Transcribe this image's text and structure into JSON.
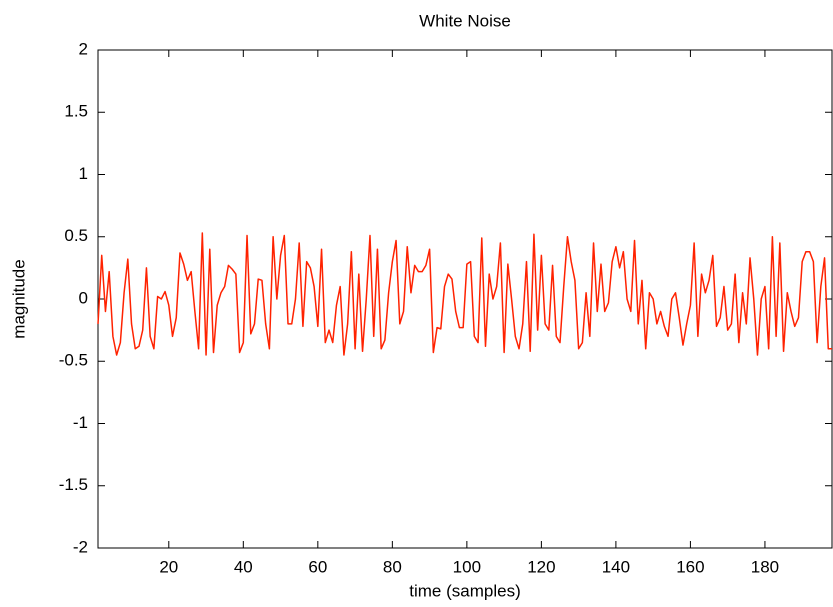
{
  "chart_data": {
    "type": "line",
    "title": "White Noise",
    "x_label": "time (samples)",
    "y_label": "magnitude",
    "x": [
      1,
      2,
      3,
      4,
      5,
      6,
      7,
      8,
      9,
      10,
      11,
      12,
      13,
      14,
      15,
      16,
      17,
      18,
      19,
      20,
      21,
      22,
      23,
      24,
      25,
      26,
      27,
      28,
      29,
      30,
      31,
      32,
      33,
      34,
      35,
      36,
      37,
      38,
      39,
      40,
      41,
      42,
      43,
      44,
      45,
      46,
      47,
      48,
      49,
      50,
      51,
      52,
      53,
      54,
      55,
      56,
      57,
      58,
      59,
      60,
      61,
      62,
      63,
      64,
      65,
      66,
      67,
      68,
      69,
      70,
      71,
      72,
      73,
      74,
      75,
      76,
      77,
      78,
      79,
      80,
      81,
      82,
      83,
      84,
      85,
      86,
      87,
      88,
      89,
      90,
      91,
      92,
      93,
      94,
      95,
      96,
      97,
      98,
      99,
      100,
      101,
      102,
      103,
      104,
      105,
      106,
      107,
      108,
      109,
      110,
      111,
      112,
      113,
      114,
      115,
      116,
      117,
      118,
      119,
      120,
      121,
      122,
      123,
      124,
      125,
      126,
      127,
      128,
      129,
      130,
      131,
      132,
      133,
      134,
      135,
      136,
      137,
      138,
      139,
      140,
      141,
      142,
      143,
      144,
      145,
      146,
      147,
      148,
      149,
      150,
      151,
      152,
      153,
      154,
      155,
      156,
      157,
      158,
      159,
      160,
      161,
      162,
      163,
      164,
      165,
      166,
      167,
      168,
      169,
      170,
      171,
      172,
      173,
      174,
      175,
      176,
      177,
      178,
      179,
      180,
      181,
      182,
      183,
      184,
      185,
      186,
      187,
      188,
      189,
      190,
      191,
      192,
      193,
      194,
      195,
      196,
      197,
      198
    ],
    "series": [
      {
        "name": "white noise",
        "color": "#ff2200",
        "values": [
          -0.2,
          0.35,
          -0.1,
          0.22,
          -0.3,
          -0.45,
          -0.35,
          0.05,
          0.32,
          -0.2,
          -0.4,
          -0.38,
          -0.25,
          0.25,
          -0.3,
          -0.4,
          0.02,
          0.0,
          0.06,
          -0.05,
          -0.3,
          -0.15,
          0.37,
          0.28,
          0.15,
          0.22,
          -0.1,
          -0.4,
          0.53,
          -0.45,
          0.4,
          -0.43,
          -0.05,
          0.05,
          0.1,
          0.27,
          0.24,
          0.2,
          -0.43,
          -0.35,
          0.51,
          -0.28,
          -0.2,
          0.16,
          0.15,
          -0.2,
          -0.4,
          0.5,
          0.0,
          0.35,
          0.51,
          -0.2,
          -0.2,
          0.0,
          0.45,
          -0.22,
          0.3,
          0.25,
          0.1,
          -0.22,
          0.4,
          -0.35,
          -0.25,
          -0.35,
          -0.05,
          0.1,
          -0.45,
          -0.2,
          0.38,
          -0.4,
          0.2,
          -0.42,
          0.0,
          0.51,
          -0.3,
          0.4,
          -0.4,
          -0.33,
          0.05,
          0.3,
          0.47,
          -0.2,
          -0.1,
          0.42,
          0.05,
          0.27,
          0.22,
          0.22,
          0.27,
          0.4,
          -0.43,
          -0.23,
          -0.24,
          0.1,
          0.2,
          0.16,
          -0.1,
          -0.23,
          -0.23,
          0.28,
          0.3,
          -0.3,
          -0.35,
          0.49,
          -0.38,
          0.2,
          0.0,
          0.1,
          0.45,
          -0.43,
          0.28,
          0.0,
          -0.3,
          -0.4,
          -0.2,
          0.3,
          -0.42,
          0.52,
          -0.25,
          0.35,
          -0.2,
          -0.25,
          0.27,
          -0.3,
          -0.35,
          0.1,
          0.5,
          0.3,
          0.15,
          -0.4,
          -0.35,
          0.05,
          -0.3,
          0.45,
          -0.1,
          0.28,
          -0.1,
          -0.03,
          0.3,
          0.42,
          0.25,
          0.38,
          0.0,
          -0.1,
          0.47,
          -0.2,
          0.15,
          -0.4,
          0.05,
          0.0,
          -0.2,
          -0.1,
          -0.22,
          -0.3,
          0.0,
          0.05,
          -0.15,
          -0.37,
          -0.2,
          -0.05,
          0.45,
          -0.3,
          0.2,
          0.05,
          0.15,
          0.35,
          -0.22,
          -0.15,
          0.1,
          -0.25,
          -0.2,
          0.2,
          -0.35,
          0.05,
          -0.2,
          0.33,
          0.0,
          -0.45,
          0.0,
          0.1,
          -0.4,
          0.5,
          -0.3,
          0.45,
          -0.42,
          0.05,
          -0.1,
          -0.22,
          -0.15,
          0.3,
          0.38,
          0.38,
          0.3,
          -0.35,
          0.1,
          0.33,
          -0.4,
          -0.4
        ]
      }
    ],
    "xlim": [
      1,
      198
    ],
    "ylim": [
      -2,
      2
    ],
    "xticks": [
      20,
      40,
      60,
      80,
      100,
      120,
      140,
      160,
      180
    ],
    "yticks": [
      -2,
      -1.5,
      -1,
      -0.5,
      0,
      0.5,
      1,
      1.5,
      2
    ],
    "grid": false
  }
}
